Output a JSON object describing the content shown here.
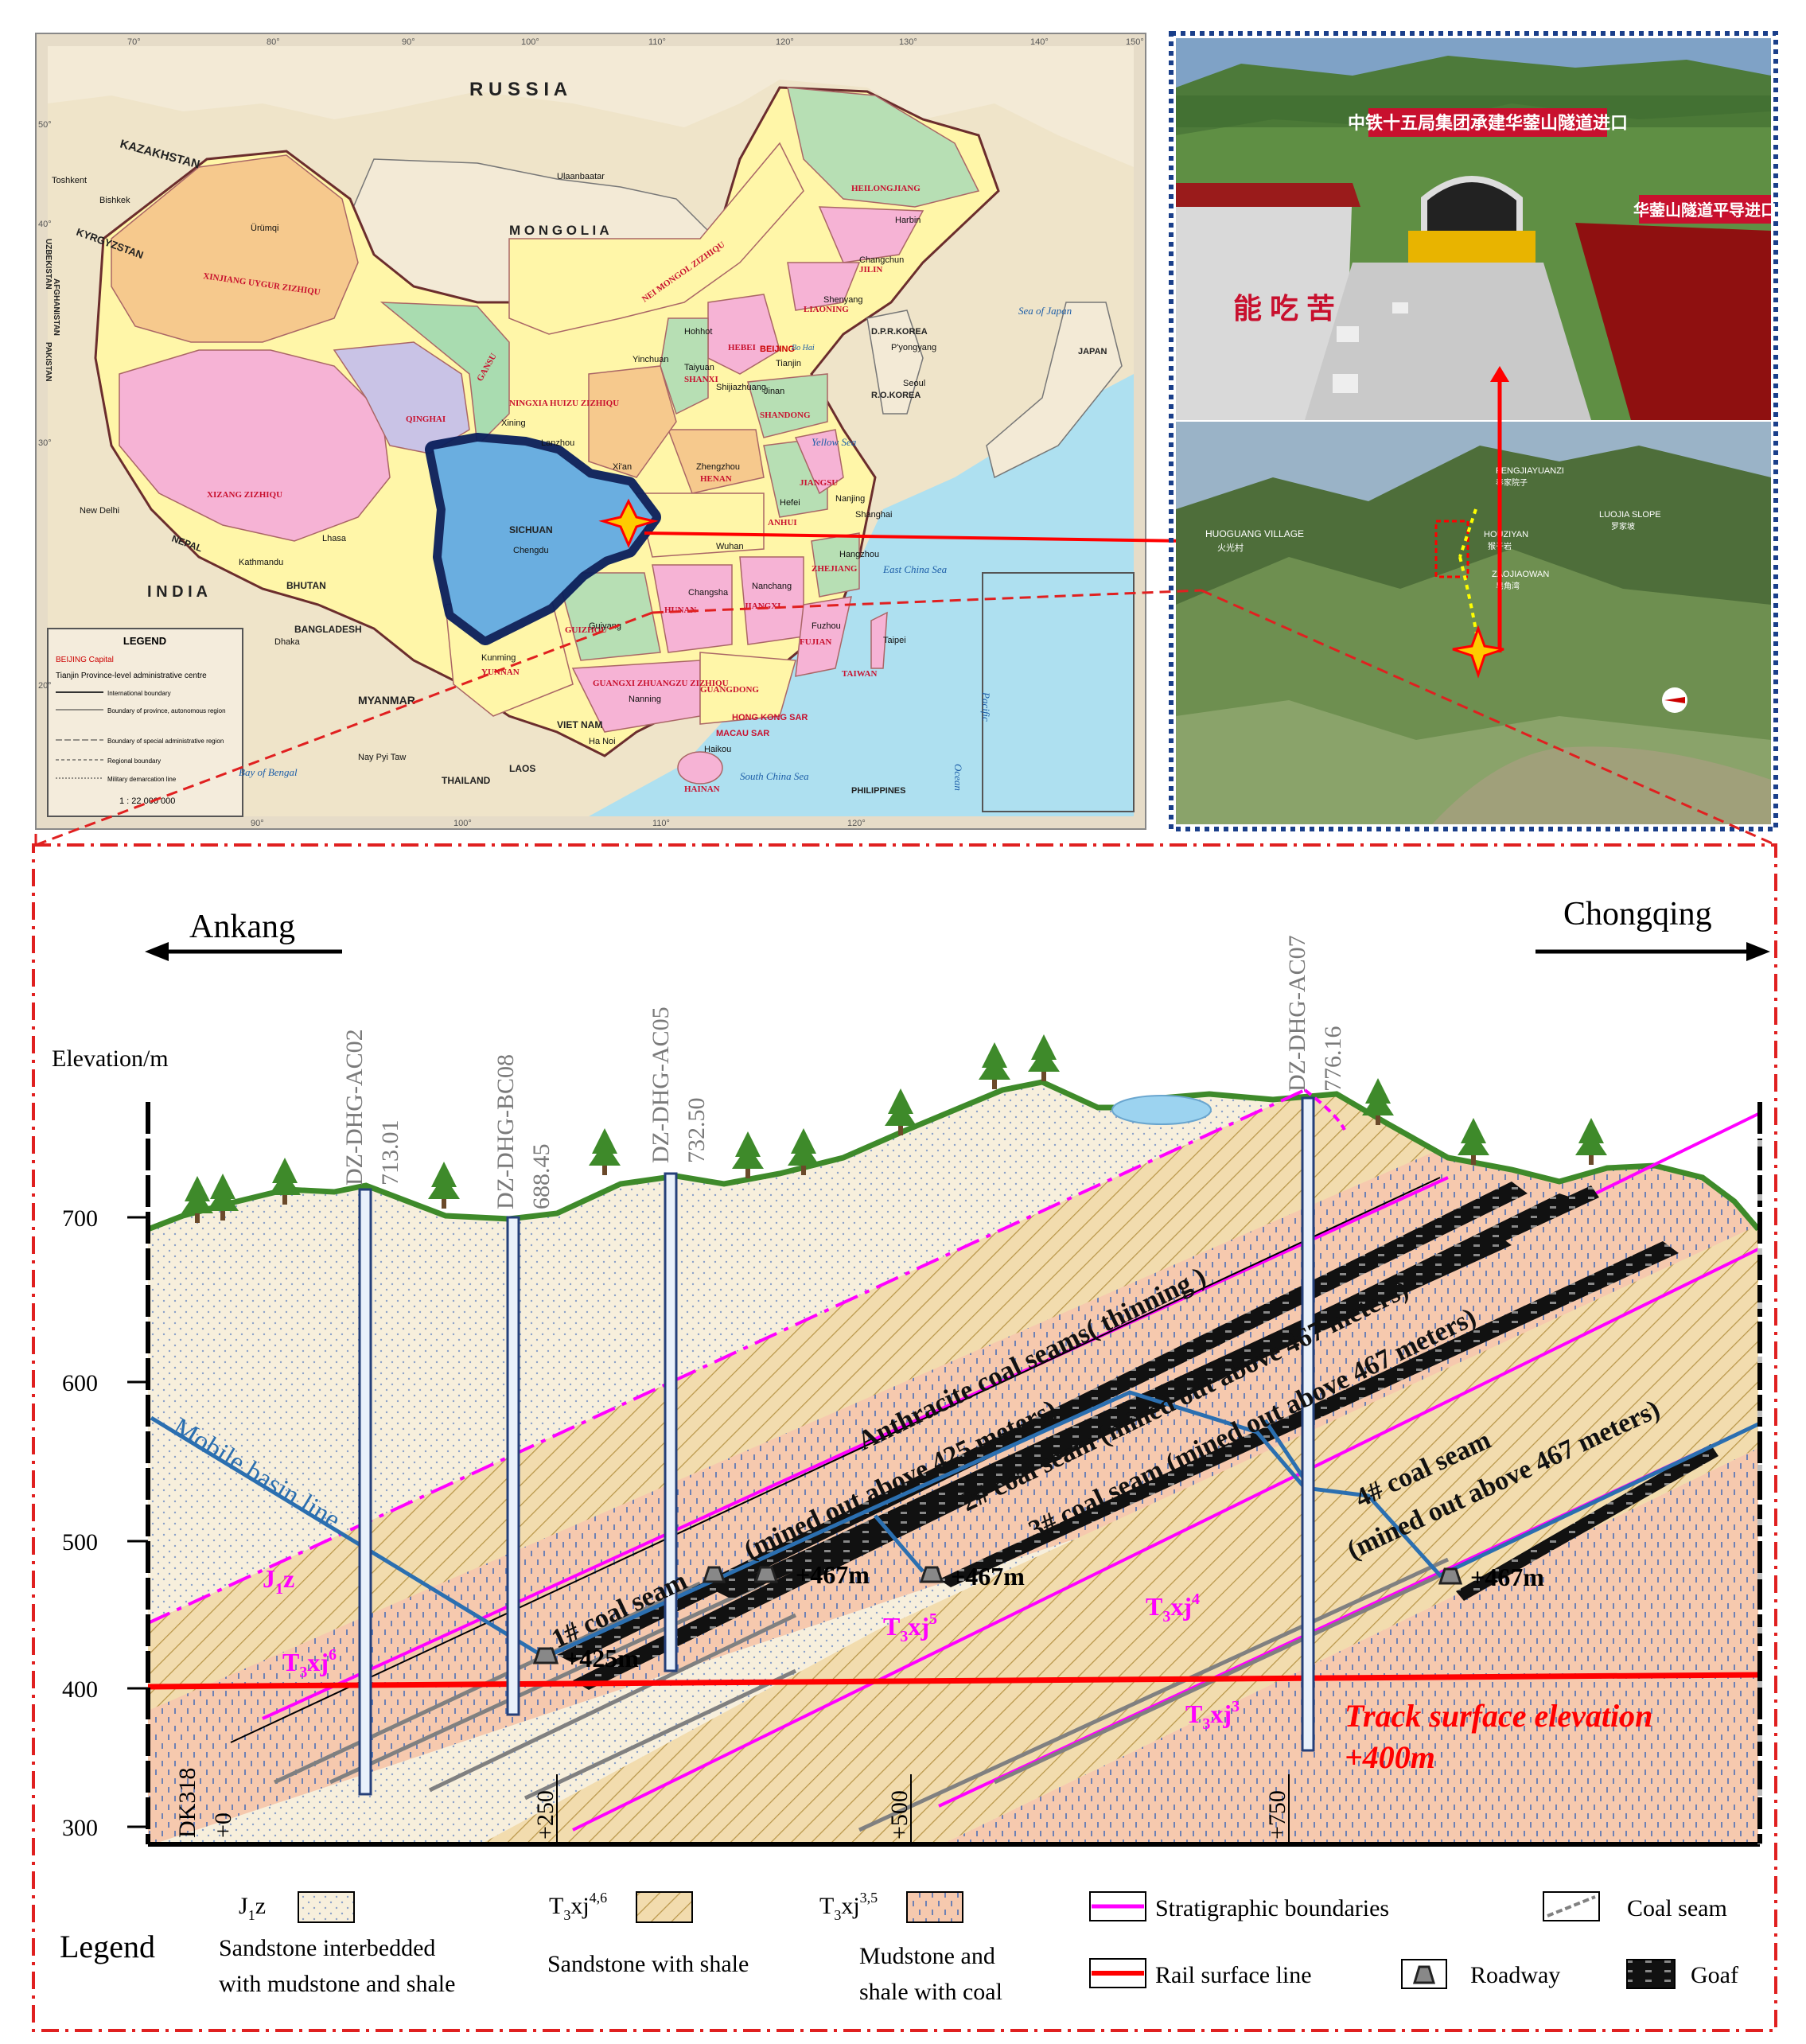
{
  "map": {
    "countries": {
      "russia": "R U S S I A",
      "kazakhstan": "KAZAKHSTAN",
      "mongolia": "M O N G O L I A",
      "kyrgyzstan": "KYRGYZSTAN",
      "uzbekistan": "UZBEKISTAN",
      "afghanistan": "AFGHANISTAN",
      "pakistan": "PAKISTAN",
      "india": "I N D I A",
      "nepal": "NEPAL",
      "bhutan": "BHUTAN",
      "bangladesh": "BANGLADESH",
      "myanmar": "MYANMAR",
      "laos": "LAOS",
      "thailand": "THAILAND",
      "vietnam": "VIET NAM",
      "philippines": "PHILIPPINES",
      "dpr_korea": "D.P.R.KOREA",
      "ro_korea": "R.O.KOREA",
      "japan": "JAPAN"
    },
    "provinces": {
      "xinjiang": "XINJIANG UYGUR ZIZHIQU",
      "xizang": "XIZANG ZIZHIQU",
      "qinghai": "QINGHAI",
      "gansu": "GANSU",
      "nei_mongol": "NEI MONGOL ZIZHIQU",
      "heilongjiang": "HEILONGJIANG",
      "jilin": "JILIN",
      "liaoning": "LIAONING",
      "sichuan": "SICHUAN",
      "yunnan": "YUNNAN",
      "guangxi": "GUANGXI ZHUANGZU ZIZHIQU",
      "guangdong": "GUANGDONG",
      "hunan": "HUNAN",
      "henan": "HENAN",
      "shanxi": "SHANXI",
      "shandong": "SHANDONG",
      "hebei": "HEBEI",
      "jiangxi": "JIANGXI",
      "fujian": "FUJIAN",
      "zhejiang": "ZHEJIANG",
      "anhui": "ANHUI",
      "jiangsu": "JIANGSU",
      "taiwan": "TAIWAN",
      "hainan": "HAINAN",
      "ningxia": "NINGXIA HUIZU ZIZHIQU",
      "guizhou": "GUIZHOU"
    },
    "cities": {
      "beijing": "BEIJING",
      "tianjin": "Tianjin",
      "chengdu": "Chengdu",
      "urumqi": "Ürümqi",
      "lhasa": "Lhasa",
      "xining": "Xining",
      "lanzhou": "Lanzhou",
      "xian": "Xi'an",
      "wuhan": "Wuhan",
      "shanghai": "Shanghai",
      "nanjing": "Nanjing",
      "hangzhou": "Hangzhou",
      "harbin": "Harbin",
      "changchun": "Changchun",
      "shenyang": "Shenyang",
      "hohhot": "Hohhot",
      "taiyuan": "Taiyuan",
      "shijiazhuang": "Shijiazhuang",
      "jinan": "Jinan",
      "zhengzhou": "Zhengzhou",
      "hefei": "Hefei",
      "changsha": "Changsha",
      "nanchang": "Nanchang",
      "fuzhou": "Fuzhou",
      "guiyang": "Guiyang",
      "kunming": "Kunming",
      "nanning": "Nanning",
      "haikou": "Haikou",
      "taipei": "Taipei",
      "yinchuan": "Yinchuan",
      "ulaanbaatar": "Ulaanbaatar",
      "new_delhi": "New Delhi",
      "kathmandu": "Kathmandu",
      "dhaka": "Dhaka",
      "seoul": "Seoul",
      "pyongyang": "P'yongyang",
      "hanoi": "Ha Noi",
      "nay_pyi_taw": "Nay Pyi Taw",
      "bishkek": "Bishkek",
      "tashkent": "Toshkent",
      "hong_kong": "HONG KONG SAR",
      "macau": "MACAU SAR"
    },
    "seas": {
      "sea_of_japan": "Sea of Japan",
      "yellow_sea": "Yellow Sea",
      "east_china_sea": "East China Sea",
      "south_china_sea": "South China Sea",
      "bay_of_bengal": "Bay of Bengal",
      "pacific_ocean_1": "Pacific",
      "pacific_ocean_2": "Ocean",
      "bo_hai": "Bo Hai"
    },
    "longitudes": [
      "70°",
      "80°",
      "90°",
      "100°",
      "110°",
      "120°",
      "130°",
      "140°",
      "150°"
    ],
    "bottom_longitudes": [
      "90°",
      "100°",
      "110°",
      "120°"
    ],
    "latitudes": [
      "50°",
      "40°",
      "30°",
      "20°"
    ],
    "legend": {
      "title": "LEGEND",
      "items": [
        "BEIJING  Capital",
        "Tianjin  Province-level administrative centre",
        "International boundary",
        "Boundary of province, autonomous region",
        "Boundary of special administrative region",
        "Regional boundary",
        "Military demarcation line"
      ],
      "scale": "1 : 22 000 000"
    }
  },
  "photo_top": {
    "banner": "中铁十五局集团承建华蓥山隧道进口",
    "banner_right": "华蓥山隧道平导进口",
    "wall_text": "能 吃 苦"
  },
  "photo_aerial": {
    "labels": {
      "huoguang": "HUOGUANG VILLAGE",
      "huoguang_cn": "火光村",
      "fengjia": "FENGJIAYUANZI",
      "fengjia_cn": "奉家院子",
      "houziyan": "HOUZIYAN",
      "houziyan_cn": "猴子岩",
      "zaojiaowan": "ZAOJIAOWAN",
      "zaojiaowan_cn": "皂角湾",
      "luojia": "LUOJIA SLOPE",
      "luojia_cn": "罗家坡"
    }
  },
  "section": {
    "left_direction": "Ankang",
    "right_direction": "Chongqing",
    "elevation_label": "Elevation/m",
    "y_ticks": [
      "700",
      "600",
      "500",
      "400",
      "300"
    ],
    "boreholes": [
      {
        "name": "DZ-DHG-AC02",
        "elev": "713.01"
      },
      {
        "name": "DZ-DHG-BC08",
        "elev": "688.45"
      },
      {
        "name": "DZ-DHG-AC05",
        "elev": "732.50"
      },
      {
        "name": "DZ-DHG-AC07",
        "elev": "776.16"
      }
    ],
    "chainage": [
      "DK318",
      "+0",
      "+250",
      "+500",
      "+750"
    ],
    "mobile_basin_line": "Mobile basin line",
    "seam_labels": {
      "thinning": "Anthracite coal seams( thinning )",
      "s1_mined": "(mined out above 425 meters)",
      "s1": "1# coal seam",
      "s2": "2# coal seam  (mined out above 467 meters)",
      "s3": "3# coal seam (mined out above 467 meters)",
      "s4a": "4# coal seam",
      "s4b": "(mined out above 467 meters)"
    },
    "roadway_labels": {
      "r425": "+425m",
      "r467a": "+467m",
      "r467b": "+467m",
      "r467c": "+467m"
    },
    "strata_labels": {
      "j1z": "J",
      "j1z_sub": "1",
      "j1z_end": "z",
      "t6": "T",
      "t6_sub": "3",
      "t6_mid": "xj",
      "t6_sup": "6",
      "t5": "T",
      "t5_sub": "3",
      "t5_mid": "xj",
      "t5_sup": "5",
      "t4": "T",
      "t4_sub": "3",
      "t4_mid": "xj",
      "t4_sup": "4",
      "t3": "T",
      "t3_sub": "3",
      "t3_mid": "xj",
      "t3_sup": "3"
    },
    "track_label_1": "Track surface elevation",
    "track_label_2": "+400m",
    "legend": {
      "title": "Legend",
      "j1z_code": "J",
      "j1z_code_sub": "1",
      "j1z_code_end": "z",
      "j1z_desc_1": "Sandstone interbedded",
      "j1z_desc_2": "with mudstone and shale",
      "t46_code": "T",
      "t46_code_sub": "3",
      "t46_code_mid": "xj",
      "t46_code_sup": "4,6",
      "t46_desc": "Sandstone with shale",
      "t35_code": "T",
      "t35_code_sub": "3",
      "t35_code_mid": "xj",
      "t35_code_sup": "3,5",
      "t35_desc_1": "Mudstone and",
      "t35_desc_2": "shale with coal",
      "strat": "Stratigraphic boundaries",
      "rail": "Rail surface line",
      "coal": "Coal seam",
      "roadway": "Roadway",
      "goaf": "Goaf"
    }
  },
  "colors": {
    "sandstone_bg": "#f7efdc",
    "sandstone_dot": "#8aa0c8",
    "hatch_bg": "#f2dcae",
    "hatch_line": "#b9974a",
    "mudstone_bg": "#f6c9ae",
    "mudstone_dash": "#4c6fb5",
    "magenta": "#ff00ff",
    "rail_red": "#ff0000",
    "blue_line": "#2b6fb0",
    "ground_green": "#3e8a2a"
  }
}
